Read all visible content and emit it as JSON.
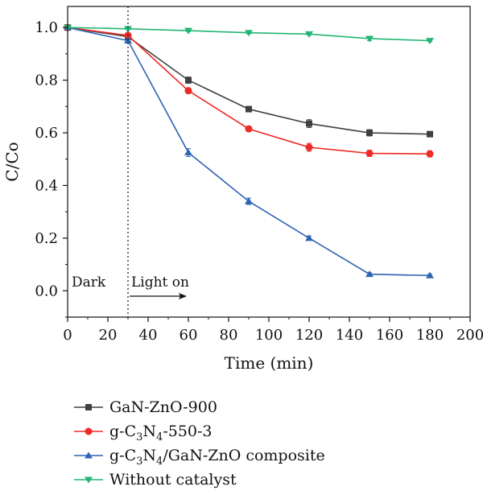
{
  "chart_data": {
    "type": "line",
    "xlabel": "Time (min)",
    "ylabel": "C/Co",
    "xlim": [
      0,
      200
    ],
    "ylim": [
      -0.1,
      1.08
    ],
    "x_ticks": [
      0,
      20,
      40,
      60,
      80,
      100,
      120,
      140,
      160,
      180,
      200
    ],
    "y_ticks": [
      0.0,
      0.2,
      0.4,
      0.6,
      0.8,
      1.0
    ],
    "x_tick_labels": [
      "0",
      "20",
      "40",
      "60",
      "80",
      "100",
      "120",
      "140",
      "160",
      "180",
      "200"
    ],
    "y_tick_labels": [
      "0.0",
      "0.2",
      "0.4",
      "0.6",
      "0.8",
      "1.0"
    ],
    "grid": false,
    "legend_position": "below",
    "annotations": {
      "dark_label": "Dark",
      "light_label": "Light on",
      "divider_x": 30
    },
    "series": [
      {
        "name": "GaN-ZnO-900",
        "legend": {
          "parts": [
            "GaN-ZnO-900"
          ]
        },
        "color": "#404040",
        "marker": "square",
        "x": [
          0,
          30,
          60,
          90,
          120,
          150,
          180
        ],
        "y": [
          1.0,
          0.965,
          0.8,
          0.69,
          0.635,
          0.6,
          0.595
        ],
        "err": [
          0,
          0.008,
          0.012,
          0.008,
          0.015,
          0.012,
          0.008
        ]
      },
      {
        "name": "g-C3N4-550-3",
        "legend": {
          "parts": [
            "g-C",
            "3",
            "N",
            "4",
            "-550-3"
          ]
        },
        "color": "#ee2b24",
        "marker": "circle",
        "x": [
          0,
          30,
          60,
          90,
          120,
          150,
          180
        ],
        "y": [
          1.0,
          0.97,
          0.76,
          0.615,
          0.545,
          0.522,
          0.52
        ],
        "err": [
          0,
          0.008,
          0.01,
          0.008,
          0.015,
          0.012,
          0.012
        ]
      },
      {
        "name": "g-C3N4/GaN-ZnO composite",
        "legend": {
          "parts": [
            "g-C",
            "3",
            "N",
            "4",
            "/GaN-ZnO composite"
          ]
        },
        "color": "#2f63b4",
        "marker": "triangle-up",
        "x": [
          0,
          30,
          60,
          90,
          120,
          150,
          180
        ],
        "y": [
          1.0,
          0.95,
          0.525,
          0.34,
          0.2,
          0.063,
          0.058
        ],
        "err": [
          0,
          0.008,
          0.015,
          0.012,
          0.008,
          0.006,
          0.006
        ]
      },
      {
        "name": "Without catalyst",
        "legend": {
          "parts": [
            "Without catalyst"
          ]
        },
        "color": "#22b573",
        "marker": "triangle-down",
        "x": [
          0,
          30,
          60,
          90,
          120,
          150,
          180
        ],
        "y": [
          1.0,
          0.995,
          0.988,
          0.98,
          0.975,
          0.958,
          0.95
        ],
        "err": [
          0,
          0.004,
          0.004,
          0.004,
          0.004,
          0.008,
          0.004
        ]
      }
    ]
  }
}
